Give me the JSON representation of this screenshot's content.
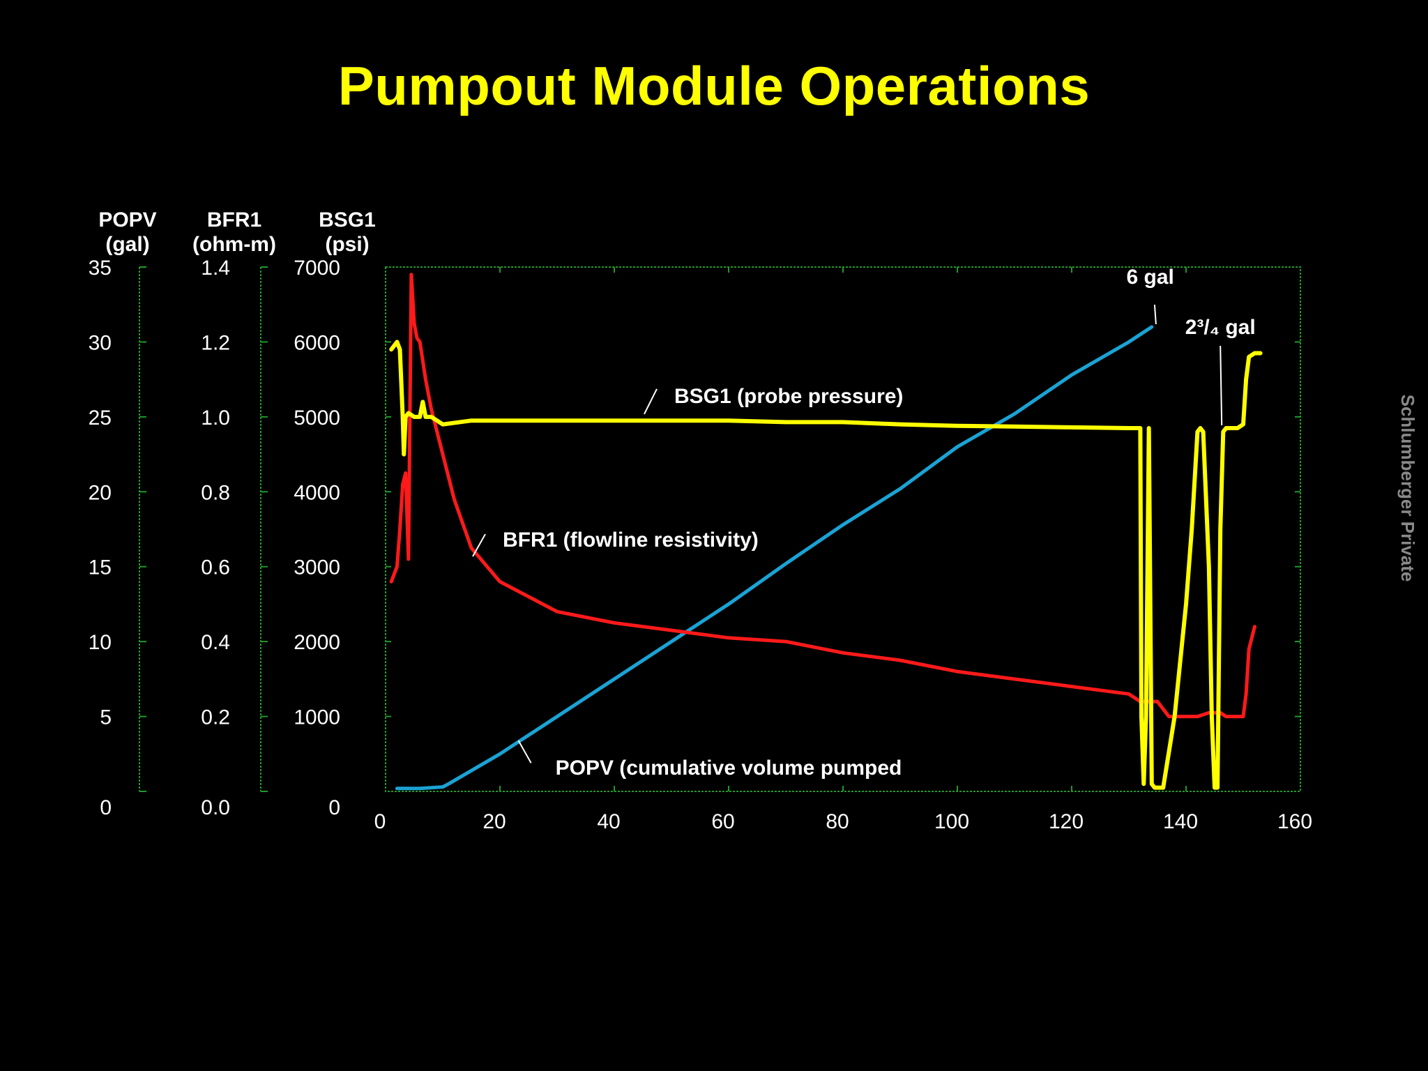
{
  "title": "Pumpout Module Operations",
  "watermark": "Schlumberger Private",
  "colors": {
    "background": "#000000",
    "title": "#ffff00",
    "bsg1": "#ffff00",
    "bfr1": "#ff1a1a",
    "popv": "#1aa3d4",
    "axis": "#1f9a2a"
  },
  "chart_data": {
    "type": "line",
    "title": "Pumpout Module Operations",
    "x_ticks": [
      0,
      20,
      40,
      60,
      80,
      100,
      120,
      140,
      160
    ],
    "xlim": [
      0,
      160
    ],
    "grid": false,
    "axes": [
      {
        "key": "popv",
        "label_line1": "POPV",
        "label_line2": "(gal)",
        "ylim": [
          0,
          35
        ],
        "ticks": [
          "0",
          "5",
          "10",
          "15",
          "20",
          "25",
          "30",
          "35"
        ]
      },
      {
        "key": "bfr1",
        "label_line1": "BFR1",
        "label_line2": "(ohm-m)",
        "ylim": [
          0.0,
          1.4
        ],
        "ticks": [
          "0.0",
          "0.2",
          "0.4",
          "0.6",
          "0.8",
          "1.0",
          "1.2",
          "1.4"
        ]
      },
      {
        "key": "bsg1",
        "label_line1": "BSG1",
        "label_line2": "(psi)",
        "ylim": [
          0,
          7000
        ],
        "ticks": [
          "0",
          "1000",
          "2000",
          "3000",
          "4000",
          "5000",
          "6000",
          "7000"
        ]
      }
    ],
    "series": [
      {
        "name": "BSG1 (probe pressure)",
        "axis": "bsg1",
        "x": [
          1,
          2,
          2.5,
          3,
          3.2,
          3.5,
          4,
          5,
          6,
          6.5,
          7,
          8,
          10,
          15,
          20,
          30,
          40,
          50,
          60,
          70,
          80,
          90,
          100,
          110,
          120,
          130,
          132,
          132.2,
          132.6,
          133,
          133.5,
          134,
          134.5,
          135,
          136,
          138,
          140,
          141,
          142,
          142.5,
          143,
          144,
          144.5,
          145,
          145.5,
          146,
          146.5,
          147,
          147.5,
          148,
          149,
          150,
          150.5,
          151,
          152,
          153
        ],
        "y": [
          5900,
          6000,
          5900,
          5000,
          4500,
          5000,
          5050,
          5000,
          5000,
          5200,
          5000,
          5000,
          4900,
          4950,
          4950,
          4950,
          4950,
          4950,
          4950,
          4930,
          4930,
          4900,
          4880,
          4870,
          4860,
          4850,
          4850,
          1000,
          100,
          1000,
          4850,
          100,
          50,
          50,
          50,
          1000,
          2500,
          3500,
          4800,
          4850,
          4800,
          3000,
          1000,
          50,
          50,
          3500,
          4800,
          4850,
          4850,
          4850,
          4850,
          4900,
          5500,
          5800,
          5850,
          5850
        ]
      },
      {
        "name": "BFR1 (flowline resistivity)",
        "axis": "bfr1",
        "x": [
          1,
          2,
          2.5,
          3,
          3.5,
          4,
          4.5,
          5,
          5.5,
          6,
          7,
          8,
          10,
          12,
          15,
          20,
          25,
          30,
          40,
          50,
          60,
          70,
          80,
          90,
          100,
          110,
          120,
          130,
          132,
          135,
          137,
          140,
          142,
          144,
          146,
          147,
          148,
          149,
          150,
          150.5,
          151,
          152
        ],
        "y": [
          0.56,
          0.6,
          0.7,
          0.82,
          0.85,
          0.62,
          1.38,
          1.25,
          1.21,
          1.2,
          1.1,
          1.02,
          0.9,
          0.78,
          0.65,
          0.56,
          0.52,
          0.48,
          0.45,
          0.43,
          0.41,
          0.4,
          0.37,
          0.35,
          0.32,
          0.3,
          0.28,
          0.26,
          0.24,
          0.24,
          0.2,
          0.2,
          0.2,
          0.21,
          0.21,
          0.2,
          0.2,
          0.2,
          0.2,
          0.26,
          0.38,
          0.44
        ]
      },
      {
        "name": "POPV (cumulative volume pumped",
        "axis": "popv",
        "x": [
          2,
          6,
          10,
          11,
          20,
          30,
          40,
          50,
          60,
          70,
          80,
          90,
          100,
          110,
          120,
          130,
          134
        ],
        "y": [
          0.2,
          0.2,
          0.3,
          0.5,
          2.5,
          5,
          7.5,
          10,
          12.5,
          15.2,
          17.8,
          20.2,
          23,
          25.2,
          27.8,
          30,
          31
        ]
      }
    ],
    "annotations": [
      {
        "text": "BSG1 (probe pressure)",
        "series": "BSG1 (probe pressure)",
        "x": 45,
        "y_value": 5000,
        "axis": "bsg1"
      },
      {
        "text": "BFR1 (flowline resistivity)",
        "series": "BFR1 (flowline resistivity)",
        "x": 15,
        "y_value": 0.62,
        "axis": "bfr1"
      },
      {
        "text": "POPV (cumulative volume pumped",
        "series": "POPV (cumulative volume pumped",
        "x": 23,
        "y_value": 3.2,
        "axis": "popv"
      },
      {
        "text": "6 gal",
        "x": 134.5,
        "y_value": 31,
        "axis": "popv"
      },
      {
        "text": "2³/₄ gal",
        "x": 146,
        "y_value": 4850,
        "axis": "bsg1"
      }
    ]
  }
}
